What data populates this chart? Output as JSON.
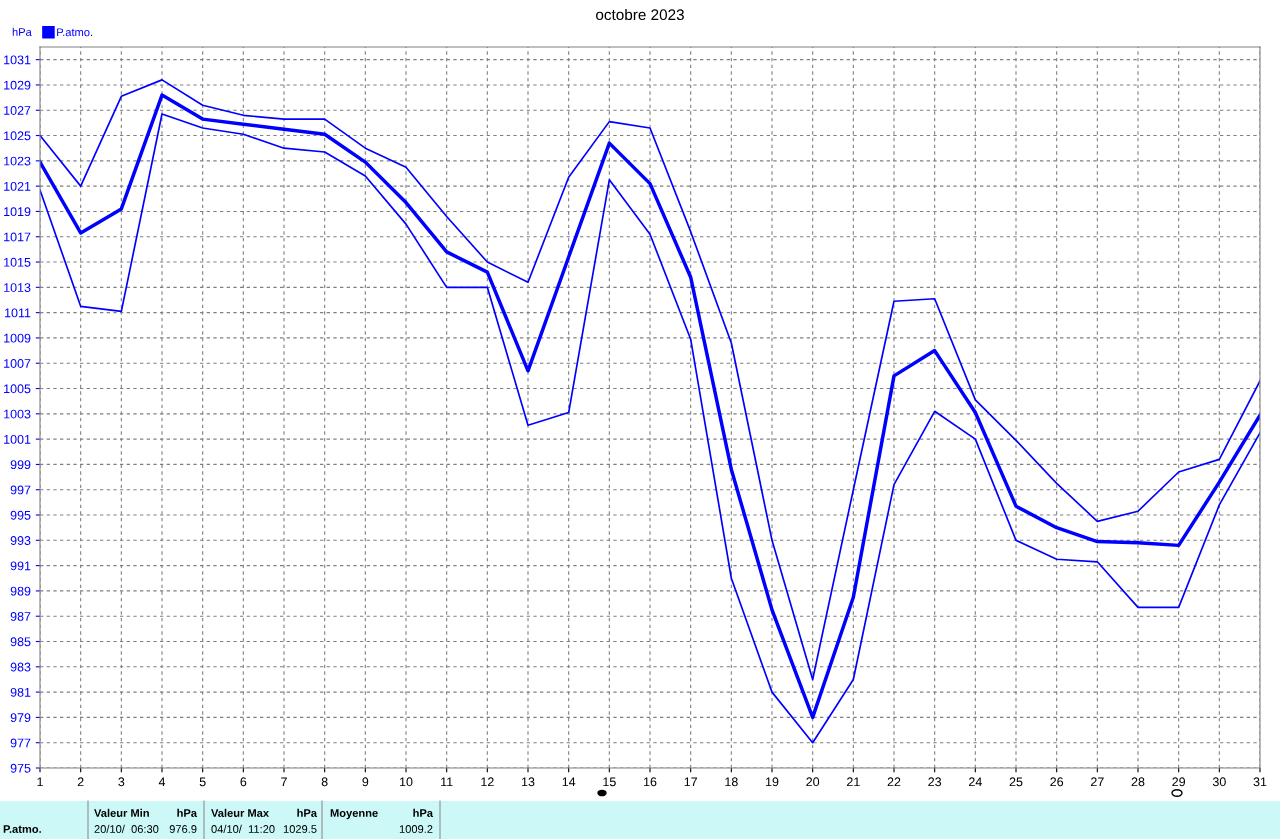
{
  "chart_data": {
    "type": "line",
    "title": "octobre 2023",
    "ylabel": "hPa",
    "x": [
      1,
      2,
      3,
      4,
      5,
      6,
      7,
      8,
      9,
      10,
      11,
      12,
      13,
      14,
      15,
      16,
      17,
      18,
      19,
      20,
      21,
      22,
      23,
      24,
      25,
      26,
      27,
      28,
      29,
      30,
      31
    ],
    "series": [
      {
        "color": "#0000ff",
        "values": [
          1025.0,
          1021.0,
          1028.1,
          1029.4,
          1027.4,
          1026.6,
          1026.3,
          1026.3,
          1024.0,
          1022.5,
          1018.6,
          1015.0,
          1013.4,
          1021.7,
          1026.1,
          1025.6,
          1017.4,
          1008.6,
          993.0,
          982.0,
          997.0,
          1011.9,
          1012.1,
          1004.1,
          1000.9,
          997.5,
          994.5,
          995.3,
          998.4,
          999.4,
          1005.6
        ]
      },
      {
        "name": "P.atmo.",
        "color": "#0000ff",
        "values": [
          1022.9,
          1017.3,
          1019.2,
          1028.2,
          1026.3,
          1025.9,
          1025.5,
          1025.1,
          1022.9,
          1019.7,
          1015.8,
          1014.2,
          1006.4,
          1015.4,
          1024.4,
          1021.2,
          1013.8,
          998.6,
          987.5,
          979.0,
          988.5,
          1006.0,
          1008.0,
          1003.1,
          995.7,
          994.0,
          992.9,
          992.8,
          992.6,
          997.6,
          1002.9
        ]
      },
      {
        "color": "#0000ff",
        "values": [
          1020.7,
          1011.5,
          1011.1,
          1026.7,
          1025.6,
          1025.1,
          1024.0,
          1023.7,
          1021.8,
          1018.0,
          1013.0,
          1013.0,
          1002.1,
          1003.1,
          1021.5,
          1017.2,
          1008.9,
          990.0,
          981.0,
          977.0,
          982.0,
          997.4,
          1003.2,
          1001.0,
          993.0,
          991.5,
          991.3,
          987.7,
          987.7,
          995.8,
          1001.5
        ]
      }
    ],
    "xlim": [
      1,
      31
    ],
    "xticks": [
      1,
      2,
      3,
      4,
      5,
      6,
      7,
      8,
      9,
      10,
      11,
      12,
      13,
      14,
      15,
      16,
      17,
      18,
      19,
      20,
      21,
      22,
      23,
      24,
      25,
      26,
      27,
      28,
      29,
      30,
      31
    ],
    "ylim": [
      975,
      1032
    ],
    "yticks": [
      975,
      977,
      979,
      981,
      983,
      985,
      987,
      989,
      991,
      993,
      995,
      997,
      999,
      1001,
      1003,
      1005,
      1007,
      1009,
      1011,
      1013,
      1015,
      1017,
      1019,
      1021,
      1023,
      1025,
      1027,
      1029,
      1031
    ],
    "grid": true,
    "legend": "top left",
    "line_style": "solid",
    "marker": "none",
    "annotations": [
      "P.atmo.",
      "Valeur Min",
      "hPa",
      "20/10/  06:30",
      "976.9",
      "Valeur Max",
      "hPa",
      "04/10/  11:20",
      "1029.5",
      "Moyenne",
      "hPa",
      "1009.2"
    ]
  }
}
